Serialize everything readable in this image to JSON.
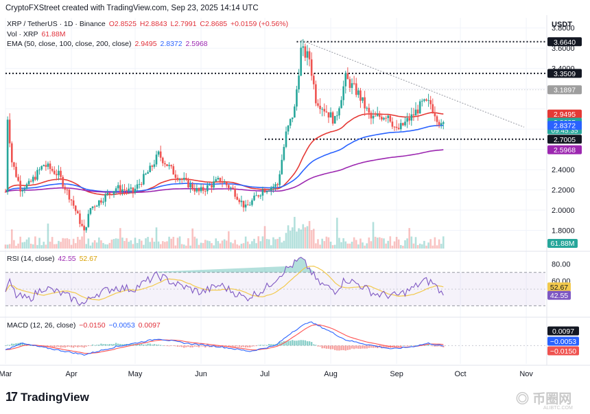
{
  "header": {
    "text": "CryptoFXStreet created with TradingView.com, Sep 23, 2025 14:14 UTC"
  },
  "legend": {
    "symbol": "XRP / TetherUS · 1D · Binance",
    "open": "O2.8525",
    "high": "H2.8843",
    "low": "L2.7991",
    "close": "C2.8685",
    "change": "+0.0159 (+0.56%)",
    "vol_label": "Vol · XRP",
    "vol_value": "61.88M",
    "ema_label": "EMA (50, close, 100, close, 200, close)",
    "ema50": "2.9495",
    "ema100": "2.8372",
    "ema200": "2.5968",
    "rsi_label": "RSI (14, close)",
    "rsi_value": "42.55",
    "rsi_ma": "52.67",
    "macd_label": "MACD (12, 26, close)",
    "macd_hist": "−0.0150",
    "macd_line": "−0.0053",
    "macd_signal": "0.0097"
  },
  "currency": "USDT",
  "colors": {
    "up": "#26a69a",
    "down": "#ef5350",
    "ema50": "#e53935",
    "ema100": "#2962ff",
    "ema200": "#9c27b0",
    "rsi": "#7e57c2",
    "rsi_ma": "#f2c94c",
    "macd": "#2962ff",
    "signal": "#ff5252",
    "badge_black": "#131722",
    "badge_gray": "#9e9e9e",
    "badge_teal": "#26a69a"
  },
  "chart_data": [
    {
      "type": "candlestick",
      "title": "XRP / TetherUS · 1D · Binance",
      "ylabel": "USDT",
      "ylim": [
        1.6,
        3.9
      ],
      "y_ticks": [
        "3.8000",
        "3.6000",
        "3.4000",
        "2.4000",
        "2.2000",
        "2.0000",
        "1.8000"
      ],
      "x_ticks": [
        "Mar",
        "Apr",
        "May",
        "Jun",
        "Jul",
        "Aug",
        "Sep",
        "Oct",
        "Nov"
      ],
      "x_range": [
        "2025-03-01",
        "2025-11-10"
      ],
      "close_anchors": [
        [
          "2025-03-01",
          2.18
        ],
        [
          "2025-03-02",
          2.92
        ],
        [
          "2025-03-04",
          2.48
        ],
        [
          "2025-03-08",
          2.22
        ],
        [
          "2025-03-12",
          2.25
        ],
        [
          "2025-03-19",
          2.45
        ],
        [
          "2025-03-26",
          2.35
        ],
        [
          "2025-04-01",
          2.1
        ],
        [
          "2025-04-07",
          1.78
        ],
        [
          "2025-04-10",
          2.02
        ],
        [
          "2025-04-22",
          2.22
        ],
        [
          "2025-04-30",
          2.18
        ],
        [
          "2025-05-08",
          2.4
        ],
        [
          "2025-05-12",
          2.55
        ],
        [
          "2025-05-20",
          2.35
        ],
        [
          "2025-05-31",
          2.18
        ],
        [
          "2025-06-10",
          2.3
        ],
        [
          "2025-06-16",
          2.2
        ],
        [
          "2025-06-22",
          2.02
        ],
        [
          "2025-06-30",
          2.2
        ],
        [
          "2025-07-07",
          2.25
        ],
        [
          "2025-07-11",
          2.75
        ],
        [
          "2025-07-15",
          3.0
        ],
        [
          "2025-07-18",
          3.58
        ],
        [
          "2025-07-22",
          3.5
        ],
        [
          "2025-07-25",
          3.1
        ],
        [
          "2025-08-03",
          2.88
        ],
        [
          "2025-08-08",
          3.3
        ],
        [
          "2025-08-14",
          3.15
        ],
        [
          "2025-08-20",
          2.9
        ],
        [
          "2025-08-28",
          2.95
        ],
        [
          "2025-09-01",
          2.78
        ],
        [
          "2025-09-08",
          2.92
        ],
        [
          "2025-09-13",
          3.05
        ],
        [
          "2025-09-17",
          3.05
        ],
        [
          "2025-09-21",
          2.88
        ],
        [
          "2025-09-22",
          2.82
        ],
        [
          "2025-09-23",
          2.8685
        ]
      ],
      "last_candle": {
        "open": 2.8525,
        "high": 2.8843,
        "low": 2.7991,
        "close": 2.8685
      },
      "horizontal_levels": [
        {
          "value": 3.664,
          "label": "3.6640",
          "style": "dotted"
        },
        {
          "value": 3.3509,
          "label": "3.3509",
          "style": "dotted"
        },
        {
          "value": 2.7005,
          "label": "2.7005",
          "style": "dotted"
        }
      ],
      "trendline": {
        "from": [
          "2025-07-18",
          3.68
        ],
        "to": [
          "2025-10-31",
          2.82
        ]
      },
      "price_badges": [
        {
          "value": 3.1897,
          "label": "3.1897",
          "kind": "gray"
        },
        {
          "value": 2.9495,
          "label": "2.9495",
          "kind": "ema50"
        },
        {
          "value": 2.8685,
          "label": "2.8685",
          "sub": "09:45:35",
          "kind": "teal"
        },
        {
          "value": 2.8372,
          "label": "2.8372",
          "kind": "ema100"
        },
        {
          "value": 2.5968,
          "label": "2.5968",
          "kind": "ema200"
        }
      ],
      "series": [
        {
          "name": "EMA 50",
          "last": 2.9495
        },
        {
          "name": "EMA 100",
          "last": 2.8372
        },
        {
          "name": "EMA 200",
          "last": 2.5968
        }
      ],
      "volume_last": "61.88M"
    },
    {
      "type": "line",
      "title": "RSI (14, close)",
      "ylim": [
        18,
        92
      ],
      "y_ticks": [
        "80.00",
        "60.00"
      ],
      "bands": [
        70,
        30
      ],
      "rsi_anchors": [
        [
          "2025-03-01",
          48
        ],
        [
          "2025-03-03",
          58
        ],
        [
          "2025-03-06",
          42
        ],
        [
          "2025-03-12",
          38
        ],
        [
          "2025-03-19",
          52
        ],
        [
          "2025-03-28",
          44
        ],
        [
          "2025-04-07",
          32
        ],
        [
          "2025-04-12",
          44
        ],
        [
          "2025-04-22",
          52
        ],
        [
          "2025-04-30",
          50
        ],
        [
          "2025-05-11",
          66
        ],
        [
          "2025-05-14",
          64
        ],
        [
          "2025-05-20",
          56
        ],
        [
          "2025-06-01",
          46
        ],
        [
          "2025-06-10",
          55
        ],
        [
          "2025-06-22",
          39
        ],
        [
          "2025-07-01",
          50
        ],
        [
          "2025-07-10",
          72
        ],
        [
          "2025-07-18",
          86
        ],
        [
          "2025-07-22",
          74
        ],
        [
          "2025-07-26",
          58
        ],
        [
          "2025-08-03",
          48
        ],
        [
          "2025-08-08",
          62
        ],
        [
          "2025-08-14",
          56
        ],
        [
          "2025-08-22",
          44
        ],
        [
          "2025-09-01",
          42
        ],
        [
          "2025-09-08",
          50
        ],
        [
          "2025-09-14",
          60
        ],
        [
          "2025-09-18",
          58
        ],
        [
          "2025-09-23",
          42.55
        ]
      ],
      "value": 42.55,
      "ma_value": 52.67
    },
    {
      "type": "line",
      "title": "MACD (12, 26, close)",
      "ylim": [
        -0.16,
        0.23
      ],
      "macd": -0.0053,
      "signal": 0.0097,
      "histogram": -0.015,
      "macd_anchors": [
        [
          "2025-03-01",
          -0.04
        ],
        [
          "2025-03-08",
          0.02
        ],
        [
          "2025-03-20",
          -0.02
        ],
        [
          "2025-04-07",
          -0.08
        ],
        [
          "2025-04-22",
          -0.01
        ],
        [
          "2025-05-12",
          0.06
        ],
        [
          "2025-05-25",
          0.02
        ],
        [
          "2025-06-10",
          -0.01
        ],
        [
          "2025-06-24",
          -0.05
        ],
        [
          "2025-07-06",
          0.0
        ],
        [
          "2025-07-14",
          0.12
        ],
        [
          "2025-07-22",
          0.21
        ],
        [
          "2025-07-30",
          0.14
        ],
        [
          "2025-08-08",
          0.05
        ],
        [
          "2025-08-18",
          0.01
        ],
        [
          "2025-08-30",
          -0.03
        ],
        [
          "2025-09-08",
          -0.01
        ],
        [
          "2025-09-16",
          0.02
        ],
        [
          "2025-09-23",
          -0.0053
        ]
      ]
    }
  ]
}
